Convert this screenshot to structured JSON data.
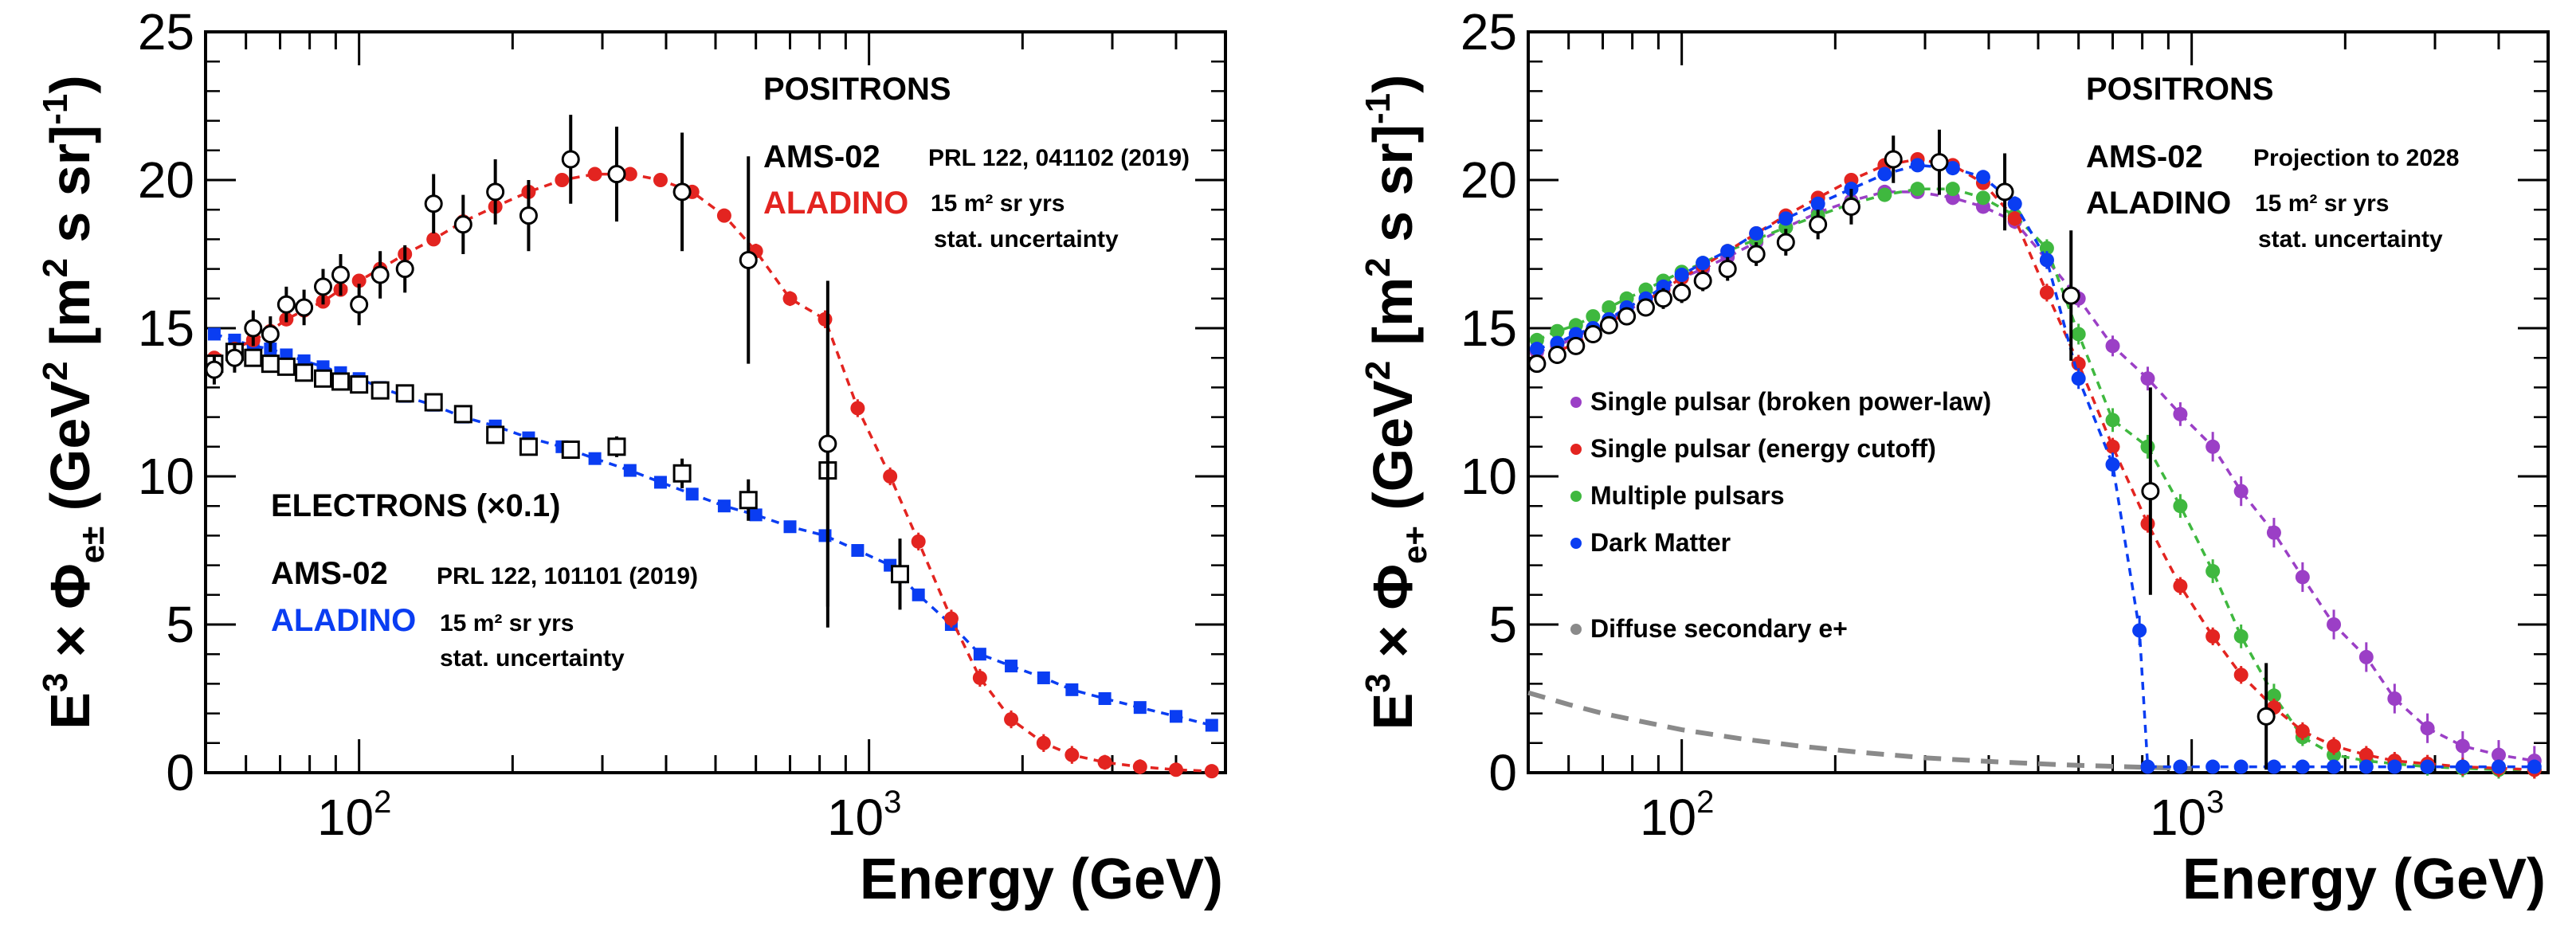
{
  "xlabel": "Energy (GeV)",
  "ytick_labels": [
    "0",
    "5",
    "10",
    "15",
    "20",
    "25"
  ],
  "xtick_labels": [
    {
      "base": "10",
      "exp": "2"
    },
    {
      "base": "10",
      "exp": "3"
    }
  ],
  "left_panel": {
    "ylabel_main": "E",
    "ylabel_exp": "3",
    "ylabel_mid": " × Φ",
    "ylabel_sub": "e±",
    "ylabel_units": " (GeV",
    "ylabel_units_exp": "2",
    "ylabel_units2": " [m",
    "ylabel_units2_exp": "2",
    "ylabel_units3": " s sr]",
    "ylabel_units3_exp": "-1",
    "ylabel_close": ")",
    "positrons_label": "POSITRONS",
    "ams_label": "AMS-02",
    "ams_ref": "PRL 122, 041102 (2019)",
    "aladino_label": "ALADINO",
    "aladino_note1": "15 m² sr yrs",
    "aladino_note2": "stat. uncertainty",
    "electrons_label": "ELECTRONS (×0.1)",
    "e_ams_label": "AMS-02",
    "e_ams_ref": "PRL 122, 101101 (2019)",
    "e_aladino_label": "ALADINO",
    "e_aladino_note1": "15 m² sr yrs",
    "e_aladino_note2": "stat. uncertainty"
  },
  "right_panel": {
    "ylabel_main": "E",
    "ylabel_exp": "3",
    "ylabel_mid": " × Φ",
    "ylabel_sub": "e+",
    "ylabel_units": " (GeV",
    "ylabel_units_exp": "2",
    "ylabel_units2": " [m",
    "ylabel_units2_exp": "2",
    "ylabel_units3": " s sr]",
    "ylabel_units3_exp": "-1",
    "ylabel_close": ")",
    "positrons_label": "POSITRONS",
    "ams_label": "AMS-02",
    "ams_note": "Projection to 2028",
    "aladino_label": "ALADINO",
    "aladino_note1": "15 m² sr yrs",
    "aladino_note2": "stat. uncertainty",
    "legend": [
      {
        "label": "Single pulsar (broken power-law)",
        "color": "#9b3fc6"
      },
      {
        "label": "Single pulsar (energy cutoff)",
        "color": "#e32420"
      },
      {
        "label": "Multiple pulsars",
        "color": "#3fb83f"
      },
      {
        "label": "Dark Matter",
        "color": "#0a3df2"
      },
      {
        "label": "Diffuse secondary e+",
        "color": "#8a8a8a"
      }
    ]
  },
  "chart_data": [
    {
      "type": "scatter",
      "panel": "left",
      "xscale": "log",
      "xlim": [
        50,
        5000
      ],
      "ylim": [
        0,
        25
      ],
      "xlabel": "Energy (GeV)",
      "ylabel": "E^3 × Φ_e± (GeV^2 [m^2 s sr]^-1)",
      "series": [
        {
          "name": "AMS-02 positrons",
          "marker": "open-circle",
          "color": "#000000",
          "x": [
            52,
            57,
            62,
            67,
            72,
            78,
            85,
            92,
            100,
            110,
            123,
            140,
            160,
            185,
            215,
            260,
            320,
            430,
            580,
            830
          ],
          "y": [
            13.6,
            14.0,
            15.0,
            14.8,
            15.8,
            15.7,
            16.4,
            16.8,
            15.8,
            16.8,
            17.0,
            19.2,
            18.5,
            19.6,
            18.8,
            20.7,
            20.2,
            19.6,
            17.3,
            11.1
          ],
          "err": [
            0.5,
            0.5,
            0.6,
            0.6,
            0.6,
            0.6,
            0.6,
            0.7,
            0.7,
            0.8,
            0.8,
            1.0,
            1.0,
            1.1,
            1.2,
            1.5,
            1.6,
            2.0,
            3.5,
            5.5
          ]
        },
        {
          "name": "ALADINO positrons",
          "marker": "filled-circle",
          "color": "#e32420",
          "x": [
            52,
            57,
            62,
            67,
            72,
            78,
            85,
            92,
            100,
            110,
            123,
            140,
            160,
            185,
            215,
            250,
            290,
            340,
            390,
            450,
            520,
            600,
            700,
            820,
            950,
            1100,
            1250,
            1450,
            1650,
            1900,
            2200,
            2500,
            2900,
            3400,
            4000,
            4700
          ],
          "y": [
            14.0,
            14.3,
            14.6,
            14.9,
            15.3,
            15.6,
            15.9,
            16.3,
            16.6,
            17.0,
            17.5,
            18.0,
            18.6,
            19.1,
            19.6,
            20.0,
            20.2,
            20.2,
            20.0,
            19.6,
            18.8,
            17.6,
            16.0,
            15.3,
            12.3,
            10.0,
            7.8,
            5.2,
            3.2,
            1.8,
            1.0,
            0.6,
            0.35,
            0.2,
            0.1,
            0.05
          ],
          "err": [
            0.2,
            0.2,
            0.2,
            0.2,
            0.2,
            0.2,
            0.2,
            0.2,
            0.2,
            0.2,
            0.2,
            0.2,
            0.2,
            0.2,
            0.2,
            0.2,
            0.2,
            0.2,
            0.2,
            0.2,
            0.2,
            0.25,
            0.25,
            0.3,
            0.3,
            0.3,
            0.3,
            0.3,
            0.3,
            0.3,
            0.3,
            0.3,
            0.25,
            0.25,
            0.2,
            0.2
          ]
        },
        {
          "name": "AMS-02 electrons (×0.1)",
          "marker": "open-square",
          "color": "#000000",
          "x": [
            52,
            57,
            62,
            67,
            72,
            78,
            85,
            92,
            100,
            110,
            123,
            140,
            160,
            185,
            215,
            260,
            320,
            430,
            580,
            830,
            1150
          ],
          "y": [
            13.8,
            14.2,
            14.0,
            13.8,
            13.7,
            13.5,
            13.3,
            13.2,
            13.1,
            12.9,
            12.8,
            12.5,
            12.1,
            11.4,
            11.0,
            10.9,
            11.0,
            10.1,
            9.2,
            10.2,
            6.7
          ],
          "err": [
            0.2,
            0.2,
            0.2,
            0.2,
            0.2,
            0.2,
            0.2,
            0.2,
            0.2,
            0.2,
            0.2,
            0.2,
            0.2,
            0.25,
            0.25,
            0.3,
            0.35,
            0.5,
            0.7,
            5.3,
            1.2
          ]
        },
        {
          "name": "ALADINO electrons (×0.1)",
          "marker": "filled-square",
          "color": "#0a3df2",
          "x": [
            52,
            57,
            62,
            67,
            72,
            78,
            85,
            92,
            100,
            110,
            123,
            140,
            160,
            185,
            215,
            250,
            290,
            340,
            390,
            450,
            520,
            600,
            700,
            820,
            950,
            1100,
            1250,
            1450,
            1650,
            1900,
            2200,
            2500,
            2900,
            3400,
            4000,
            4700
          ],
          "y": [
            14.8,
            14.6,
            14.4,
            14.3,
            14.1,
            13.9,
            13.7,
            13.5,
            13.3,
            13.0,
            12.7,
            12.4,
            12.0,
            11.7,
            11.3,
            11.0,
            10.6,
            10.2,
            9.8,
            9.4,
            9.0,
            8.7,
            8.3,
            8.0,
            7.5,
            7.0,
            6.0,
            5.0,
            4.0,
            3.6,
            3.2,
            2.8,
            2.5,
            2.2,
            1.9,
            1.6
          ],
          "err": [
            0.15,
            0.15,
            0.15,
            0.15,
            0.15,
            0.15,
            0.15,
            0.15,
            0.15,
            0.15,
            0.15,
            0.15,
            0.15,
            0.15,
            0.15,
            0.15,
            0.15,
            0.15,
            0.15,
            0.15,
            0.15,
            0.15,
            0.15,
            0.15,
            0.15,
            0.15,
            0.15,
            0.15,
            0.15,
            0.15,
            0.15,
            0.15,
            0.15,
            0.15,
            0.15,
            0.15
          ]
        }
      ]
    },
    {
      "type": "scatter",
      "panel": "right",
      "xscale": "log",
      "xlim": [
        50,
        5000
      ],
      "ylim": [
        0,
        25
      ],
      "xlabel": "Energy (GeV)",
      "ylabel": "E^3 × Φ_e+ (GeV^2 [m^2 s sr]^-1)",
      "series": [
        {
          "name": "Single pulsar (broken power-law)",
          "marker": "filled-circle",
          "color": "#9b3fc6",
          "x": [
            52,
            57,
            62,
            67,
            72,
            78,
            85,
            92,
            100,
            110,
            123,
            140,
            160,
            185,
            215,
            250,
            290,
            340,
            390,
            450,
            520,
            600,
            700,
            820,
            950,
            1100,
            1250,
            1450,
            1650,
            1900,
            2200,
            2500,
            2900,
            3400,
            4000,
            4700
          ],
          "y": [
            14.2,
            14.4,
            14.7,
            15.0,
            15.3,
            15.6,
            15.9,
            16.3,
            16.7,
            17.0,
            17.4,
            17.9,
            18.4,
            18.9,
            19.3,
            19.6,
            19.6,
            19.4,
            19.1,
            18.6,
            17.3,
            16.0,
            14.4,
            13.3,
            12.1,
            11.0,
            9.5,
            8.1,
            6.6,
            5.0,
            3.9,
            2.5,
            1.5,
            0.9,
            0.6,
            0.4
          ],
          "err": [
            0.2,
            0.2,
            0.2,
            0.2,
            0.2,
            0.2,
            0.2,
            0.2,
            0.2,
            0.2,
            0.2,
            0.2,
            0.2,
            0.2,
            0.2,
            0.2,
            0.2,
            0.2,
            0.2,
            0.25,
            0.3,
            0.3,
            0.35,
            0.4,
            0.4,
            0.5,
            0.5,
            0.5,
            0.5,
            0.5,
            0.5,
            0.5,
            0.5,
            0.5,
            0.5,
            0.5
          ]
        },
        {
          "name": "Single pulsar (energy cutoff)",
          "marker": "filled-circle",
          "color": "#e32420",
          "x": [
            52,
            57,
            62,
            67,
            72,
            78,
            85,
            92,
            100,
            110,
            123,
            140,
            160,
            185,
            215,
            250,
            290,
            340,
            390,
            450,
            520,
            600,
            700,
            820,
            950,
            1100,
            1250,
            1450,
            1650,
            1900,
            2200,
            2500,
            2900,
            3400,
            4000,
            4700
          ],
          "y": [
            13.9,
            14.2,
            14.5,
            14.8,
            15.2,
            15.5,
            15.9,
            16.3,
            16.7,
            17.1,
            17.6,
            18.2,
            18.8,
            19.4,
            20.0,
            20.5,
            20.7,
            20.5,
            19.9,
            18.7,
            16.2,
            13.8,
            11.0,
            8.4,
            6.3,
            4.6,
            3.3,
            2.2,
            1.4,
            0.9,
            0.6,
            0.4,
            0.3,
            0.2,
            0.15,
            0.1
          ],
          "err": [
            0.2,
            0.2,
            0.2,
            0.2,
            0.2,
            0.2,
            0.2,
            0.2,
            0.2,
            0.2,
            0.2,
            0.2,
            0.2,
            0.2,
            0.2,
            0.2,
            0.2,
            0.2,
            0.2,
            0.25,
            0.3,
            0.3,
            0.3,
            0.3,
            0.3,
            0.3,
            0.3,
            0.3,
            0.3,
            0.3,
            0.3,
            0.3,
            0.3,
            0.3,
            0.3,
            0.3
          ]
        },
        {
          "name": "Multiple pulsars",
          "marker": "filled-circle",
          "color": "#3fb83f",
          "x": [
            52,
            57,
            62,
            67,
            72,
            78,
            85,
            92,
            100,
            110,
            123,
            140,
            160,
            185,
            215,
            250,
            290,
            340,
            390,
            450,
            520,
            600,
            700,
            820,
            950,
            1100,
            1250,
            1450,
            1650,
            1900,
            2200,
            2500,
            2900,
            3400,
            4000,
            4700
          ],
          "y": [
            14.6,
            14.9,
            15.1,
            15.4,
            15.7,
            16.0,
            16.3,
            16.6,
            16.9,
            17.2,
            17.6,
            18.0,
            18.4,
            18.8,
            19.2,
            19.5,
            19.7,
            19.7,
            19.4,
            18.8,
            17.7,
            14.8,
            11.9,
            11.0,
            9.0,
            6.8,
            4.6,
            2.6,
            1.2,
            0.6,
            0.4,
            0.3,
            0.2,
            0.15,
            0.1,
            0.1
          ],
          "err": [
            0.2,
            0.2,
            0.2,
            0.2,
            0.2,
            0.2,
            0.2,
            0.2,
            0.2,
            0.2,
            0.2,
            0.2,
            0.2,
            0.2,
            0.2,
            0.2,
            0.2,
            0.2,
            0.2,
            0.25,
            0.3,
            0.35,
            0.4,
            0.4,
            0.4,
            0.4,
            0.4,
            0.4,
            0.3,
            0.3,
            0.3,
            0.3,
            0.3,
            0.3,
            0.3,
            0.3
          ]
        },
        {
          "name": "Dark Matter",
          "marker": "filled-circle",
          "color": "#0a3df2",
          "x": [
            52,
            57,
            62,
            67,
            72,
            78,
            85,
            92,
            100,
            110,
            123,
            140,
            160,
            185,
            215,
            250,
            290,
            340,
            390,
            450,
            520,
            600,
            700,
            790,
            820,
            950,
            1100,
            1250,
            1450,
            1650,
            1900,
            2200,
            2500,
            2900,
            3400,
            4000,
            4700
          ],
          "y": [
            14.3,
            14.5,
            14.8,
            15.0,
            15.3,
            15.7,
            16.0,
            16.4,
            16.8,
            17.2,
            17.6,
            18.2,
            18.7,
            19.2,
            19.7,
            20.2,
            20.5,
            20.4,
            20.1,
            19.2,
            17.3,
            13.3,
            10.4,
            4.8,
            0.2,
            0.2,
            0.2,
            0.2,
            0.2,
            0.2,
            0.2,
            0.2,
            0.2,
            0.2,
            0.2,
            0.2,
            0.2
          ],
          "err": [
            0.2,
            0.2,
            0.2,
            0.2,
            0.2,
            0.2,
            0.2,
            0.2,
            0.2,
            0.2,
            0.2,
            0.2,
            0.2,
            0.2,
            0.2,
            0.2,
            0.2,
            0.2,
            0.2,
            0.25,
            0.3,
            0.35,
            0.4,
            0.5,
            0.1,
            0.1,
            0.1,
            0.1,
            0.1,
            0.1,
            0.1,
            0.1,
            0.1,
            0.1,
            0.1,
            0.1,
            0.1
          ]
        },
        {
          "name": "AMS-02 projection to 2028",
          "marker": "open-circle",
          "color": "#000000",
          "x": [
            52,
            57,
            62,
            67,
            72,
            78,
            85,
            92,
            100,
            110,
            123,
            140,
            160,
            185,
            215,
            260,
            320,
            430,
            580,
            830,
            1400
          ],
          "y": [
            13.8,
            14.1,
            14.4,
            14.8,
            15.1,
            15.4,
            15.7,
            16.0,
            16.2,
            16.6,
            17.0,
            17.5,
            17.9,
            18.5,
            19.1,
            20.7,
            20.6,
            19.6,
            16.1,
            9.5,
            1.9
          ],
          "err": [
            0.3,
            0.3,
            0.3,
            0.3,
            0.3,
            0.3,
            0.3,
            0.35,
            0.35,
            0.35,
            0.4,
            0.4,
            0.45,
            0.5,
            0.6,
            0.8,
            1.1,
            1.3,
            2.2,
            3.5,
            1.8
          ]
        },
        {
          "name": "Diffuse secondary e+",
          "marker": "dashed-line",
          "color": "#8a8a8a",
          "x": [
            50,
            60,
            70,
            85,
            100,
            130,
            170,
            220,
            300,
            400,
            550,
            750,
            1000
          ],
          "y": [
            2.7,
            2.3,
            2.0,
            1.7,
            1.45,
            1.15,
            0.9,
            0.7,
            0.5,
            0.38,
            0.27,
            0.2,
            0.14
          ]
        }
      ]
    }
  ]
}
